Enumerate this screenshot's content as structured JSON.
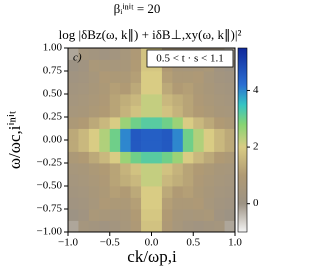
{
  "chart_data": {
    "type": "heatmap",
    "suptitle": "βᵢⁱⁿⁱᵗ = 20",
    "title": "log |δBz(ω, k∥) + iδB⊥,xy(ω, k∥)|²",
    "xlabel": "ck/ωp,i",
    "ylabel": "ω/ωc,iⁱⁿⁱᵗ",
    "panel_label": "c)",
    "annotation": "0.5 < t · s < 1.1",
    "x": [
      -0.9375,
      -0.8125,
      -0.6875,
      -0.5625,
      -0.4375,
      -0.3125,
      -0.1875,
      -0.0625,
      0.0625,
      0.1875,
      0.3125,
      0.4375,
      0.5625,
      0.6875,
      0.8125,
      0.9375
    ],
    "y": [
      -0.9375,
      -0.8125,
      -0.6875,
      -0.5625,
      -0.4375,
      -0.3125,
      -0.1875,
      -0.0625,
      0.0625,
      0.1875,
      0.3125,
      0.4375,
      0.5625,
      0.6875,
      0.8125,
      0.9375
    ],
    "z": [
      [
        -0.2,
        0.4,
        0.3,
        0.2,
        0.3,
        0.5,
        0.9,
        1.8,
        1.8,
        0.9,
        0.5,
        0.3,
        0.2,
        0.3,
        0.4,
        -0.2
      ],
      [
        0.0,
        0.2,
        0.7,
        0.6,
        0.5,
        0.6,
        1.0,
        1.9,
        1.9,
        1.0,
        0.6,
        0.5,
        0.6,
        0.7,
        0.2,
        0.0
      ],
      [
        0.2,
        0.3,
        0.5,
        0.9,
        0.8,
        0.8,
        1.1,
        2.0,
        2.0,
        1.1,
        0.8,
        0.8,
        0.9,
        0.5,
        0.3,
        0.2
      ],
      [
        0.3,
        0.4,
        0.6,
        0.8,
        1.1,
        1.0,
        1.3,
        2.0,
        2.0,
        1.3,
        1.0,
        1.1,
        0.8,
        0.6,
        0.4,
        0.3
      ],
      [
        0.4,
        0.5,
        0.7,
        0.9,
        1.2,
        1.4,
        1.6,
        2.2,
        2.2,
        1.6,
        1.4,
        1.2,
        0.9,
        0.7,
        0.5,
        0.4
      ],
      [
        0.5,
        0.6,
        0.8,
        1.0,
        1.2,
        1.5,
        1.8,
        2.2,
        2.2,
        1.8,
        1.5,
        1.2,
        1.0,
        0.8,
        0.6,
        0.5
      ],
      [
        0.8,
        1.0,
        1.3,
        1.6,
        2.0,
        2.6,
        3.0,
        3.2,
        3.2,
        3.0,
        2.6,
        2.0,
        1.6,
        1.3,
        1.0,
        0.8
      ],
      [
        1.3,
        1.6,
        2.0,
        2.4,
        3.0,
        4.0,
        4.6,
        4.5,
        4.5,
        4.6,
        4.0,
        3.0,
        2.4,
        2.0,
        1.6,
        1.3
      ],
      [
        1.3,
        1.6,
        2.0,
        2.4,
        3.0,
        4.0,
        4.6,
        4.5,
        4.5,
        4.6,
        4.0,
        3.0,
        2.4,
        2.0,
        1.6,
        1.3
      ],
      [
        0.8,
        1.0,
        1.3,
        1.6,
        2.0,
        2.6,
        3.0,
        3.2,
        3.2,
        3.0,
        2.6,
        2.0,
        1.6,
        1.3,
        1.0,
        0.8
      ],
      [
        0.5,
        0.6,
        0.8,
        1.0,
        1.2,
        1.5,
        1.8,
        2.2,
        2.2,
        1.8,
        1.5,
        1.2,
        1.0,
        0.8,
        0.6,
        0.5
      ],
      [
        0.4,
        0.5,
        0.7,
        0.9,
        1.2,
        1.4,
        1.6,
        2.2,
        2.2,
        1.6,
        1.4,
        1.2,
        0.9,
        0.7,
        0.5,
        0.4
      ],
      [
        0.3,
        0.4,
        0.6,
        0.8,
        1.1,
        1.0,
        1.3,
        2.0,
        2.0,
        1.3,
        1.0,
        1.1,
        0.8,
        0.6,
        0.4,
        0.3
      ],
      [
        0.2,
        0.3,
        0.5,
        0.9,
        0.8,
        0.8,
        1.1,
        2.0,
        2.0,
        1.1,
        0.8,
        0.8,
        0.9,
        0.5,
        0.3,
        0.2
      ],
      [
        0.0,
        0.2,
        0.7,
        0.6,
        0.5,
        0.6,
        1.0,
        1.9,
        1.9,
        1.0,
        0.6,
        0.5,
        0.6,
        0.7,
        0.2,
        0.0
      ],
      [
        -0.2,
        0.4,
        0.3,
        0.2,
        0.3,
        0.5,
        0.9,
        1.8,
        1.8,
        0.9,
        0.5,
        0.3,
        0.2,
        0.3,
        0.4,
        -0.2
      ]
    ],
    "xlim": [
      -1,
      1
    ],
    "xticks": [
      {
        "value": -1,
        "label": "−1.0"
      },
      {
        "value": -0.5,
        "label": "−0.5"
      },
      {
        "value": 0,
        "label": "0.0"
      },
      {
        "value": 0.5,
        "label": "0.5"
      },
      {
        "value": 1,
        "label": "1.0"
      }
    ],
    "ylim": [
      -1,
      1
    ],
    "yticks": [
      {
        "value": -1,
        "label": "−1.00"
      },
      {
        "value": -0.75,
        "label": "−0.75"
      },
      {
        "value": -0.5,
        "label": "−0.50"
      },
      {
        "value": -0.25,
        "label": "−0.25"
      },
      {
        "value": 0,
        "label": "0.00"
      },
      {
        "value": 0.25,
        "label": "0.25"
      },
      {
        "value": 0.5,
        "label": "0.50"
      },
      {
        "value": 0.75,
        "label": "0.75"
      },
      {
        "value": 1,
        "label": "1.00"
      }
    ],
    "clim": [
      -1,
      5.5
    ],
    "cticks": [
      0,
      2,
      4
    ],
    "colormap": [
      {
        "value": -1,
        "color": "#f4f4f4"
      },
      {
        "value": 0,
        "color": "#9d9384"
      },
      {
        "value": 1,
        "color": "#b09a74"
      },
      {
        "value": 2,
        "color": "#d9cc84"
      },
      {
        "value": 2.8,
        "color": "#86d472"
      },
      {
        "value": 3.5,
        "color": "#35c4c4"
      },
      {
        "value": 4.2,
        "color": "#2b6fd2"
      },
      {
        "value": 5.5,
        "color": "#10289a"
      }
    ]
  }
}
